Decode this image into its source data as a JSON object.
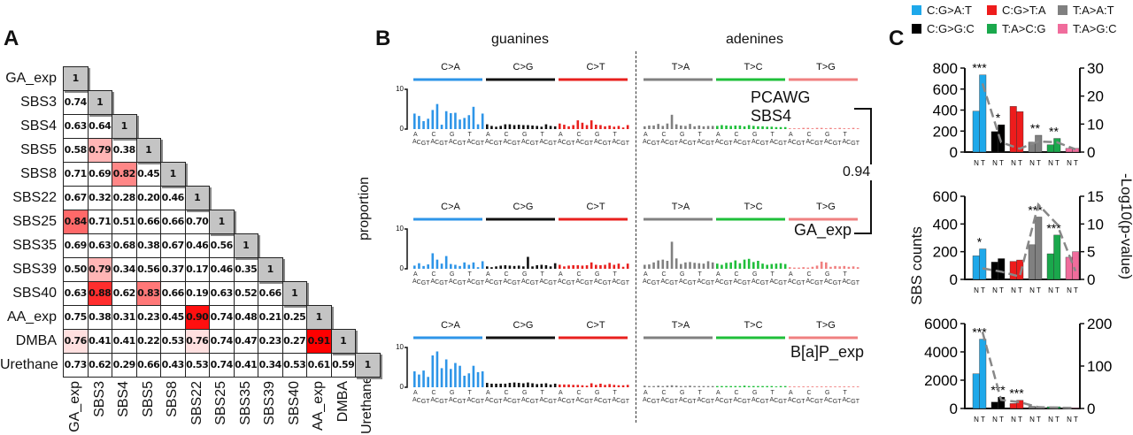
{
  "panelA": {
    "letter": "A",
    "labels": [
      "GA_exp",
      "SBS3",
      "SBS4",
      "SBS5",
      "SBS8",
      "SBS22",
      "SBS25",
      "SBS35",
      "SBS39",
      "SBS40",
      "AA_exp",
      "DMBA",
      "Urethane"
    ],
    "matrix": [
      [
        "1"
      ],
      [
        "0.74",
        "1"
      ],
      [
        "0.63",
        "0.64",
        "1"
      ],
      [
        "0.58",
        "0.79",
        "0.38",
        "1"
      ],
      [
        "0.71",
        "0.69",
        "0.82",
        "0.45",
        "1"
      ],
      [
        "0.67",
        "0.32",
        "0.28",
        "0.20",
        "0.46",
        "1"
      ],
      [
        "0.84",
        "0.71",
        "0.51",
        "0.66",
        "0.66",
        "0.70",
        "1"
      ],
      [
        "0.69",
        "0.63",
        "0.68",
        "0.38",
        "0.67",
        "0.46",
        "0.56",
        "1"
      ],
      [
        "0.50",
        "0.79",
        "0.34",
        "0.56",
        "0.37",
        "0.17",
        "0.46",
        "0.35",
        "1"
      ],
      [
        "0.63",
        "0.88",
        "0.62",
        "0.83",
        "0.66",
        "0.19",
        "0.63",
        "0.52",
        "0.66",
        "1"
      ],
      [
        "0.75",
        "0.38",
        "0.31",
        "0.23",
        "0.45",
        "0.90",
        "0.74",
        "0.48",
        "0.21",
        "0.25",
        "1"
      ],
      [
        "0.76",
        "0.41",
        "0.41",
        "0.22",
        "0.53",
        "0.76",
        "0.74",
        "0.47",
        "0.23",
        "0.27",
        "0.91",
        "1"
      ],
      [
        "0.73",
        "0.62",
        "0.29",
        "0.66",
        "0.43",
        "0.53",
        "0.74",
        "0.41",
        "0.34",
        "0.53",
        "0.61",
        "0.59",
        "1"
      ]
    ],
    "highlight_color": "#ff0000",
    "diagonal_color": "#c4c4c4"
  },
  "panelB": {
    "letter": "B",
    "group_left": "guanines",
    "group_right": "adenines",
    "ylabel": "proportion",
    "similarity": "0.94",
    "y_ticks": [
      "10",
      "0"
    ],
    "mutation_types": [
      "C>A",
      "C>G",
      "C>T",
      "T>A",
      "T>C",
      "T>G"
    ],
    "type_colors": [
      "#2e95e8",
      "#111111",
      "#e8201e",
      "#808080",
      "#1fbf3a",
      "#f08080"
    ],
    "context_5p": [
      "A",
      "C",
      "G",
      "T"
    ],
    "context_3p": [
      "A",
      "C",
      "G",
      "T"
    ],
    "signatures": [
      {
        "name": "PCAWG SBS4",
        "values": [
          [
            3.9,
            3.3,
            2.0,
            2.6,
            4.8,
            6.3,
            1.1,
            4.5,
            4.0,
            4.1,
            2.4,
            2.8,
            3.5,
            5.6,
            1.2,
            3.9
          ],
          [
            1.2,
            0.8,
            0.6,
            0.8,
            1.2,
            1.2,
            1.0,
            1.1,
            1.0,
            1.0,
            0.9,
            0.8,
            0.6,
            1.2,
            0.8,
            0.7
          ],
          [
            1.4,
            1.1,
            0.7,
            1.0,
            2.2,
            1.6,
            1.0,
            2.2,
            1.1,
            1.0,
            0.7,
            0.9,
            0.6,
            0.8,
            0.4,
            1.0
          ],
          [
            0.7,
            0.9,
            0.9,
            1.3,
            0.8,
            1.4,
            3.6,
            1.2,
            0.9,
            0.8,
            1.3,
            0.7,
            0.9,
            0.7,
            0.8,
            0.8
          ],
          [
            0.8,
            1.0,
            0.9,
            0.8,
            0.9,
            0.9,
            0.7,
            1.0,
            0.8,
            0.7,
            0.7,
            0.6,
            0.6,
            0.5,
            0.5,
            0.5
          ],
          [
            0.2,
            0.2,
            0.2,
            0.3,
            0.3,
            0.2,
            0.3,
            0.3,
            0.2,
            0.3,
            0.2,
            0.3,
            0.2,
            0.2,
            0.3,
            0.2
          ]
        ]
      },
      {
        "name": "GA_exp",
        "values": [
          [
            0.8,
            1.4,
            0.7,
            1.1,
            3.9,
            2.3,
            1.3,
            3.2,
            1.2,
            1.0,
            0.7,
            1.6,
            1.0,
            1.6,
            0.4,
            1.9
          ],
          [
            0.6,
            0.4,
            0.6,
            0.8,
            0.9,
            0.8,
            0.7,
            0.8,
            0.6,
            3.0,
            0.6,
            0.9,
            1.0,
            0.9,
            0.6,
            1.4
          ],
          [
            1.0,
            0.6,
            0.8,
            0.9,
            0.9,
            0.8,
            0.9,
            1.6,
            1.0,
            0.9,
            1.0,
            1.5,
            1.0,
            1.3,
            0.5,
            1.3
          ],
          [
            1.0,
            1.1,
            1.6,
            2.1,
            2.3,
            2.0,
            6.8,
            2.6,
            1.2,
            1.6,
            1.7,
            1.5,
            1.4,
            1.3,
            1.9,
            1.6
          ],
          [
            1.3,
            1.0,
            1.5,
            1.6,
            2.1,
            1.4,
            2.3,
            2.5,
            1.7,
            2.0,
            1.3,
            1.0,
            1.2,
            1.3,
            1.4,
            1.2
          ],
          [
            0.4,
            0.3,
            0.3,
            0.4,
            0.3,
            0.5,
            0.8,
            1.8,
            1.6,
            0.5,
            0.7,
            0.6,
            0.7,
            0.5,
            0.6,
            0.4
          ]
        ]
      },
      {
        "name": "B[a]P_exp",
        "values": [
          [
            4.0,
            3.2,
            4.2,
            2.6,
            8.0,
            9.0,
            4.8,
            7.0,
            4.6,
            6.1,
            5.4,
            2.9,
            3.5,
            5.4,
            3.8,
            4.0
          ],
          [
            1.1,
            0.9,
            0.9,
            0.9,
            0.9,
            1.1,
            1.2,
            1.1,
            1.0,
            1.2,
            1.0,
            0.8,
            0.9,
            1.0,
            0.7,
            0.9
          ],
          [
            0.7,
            0.7,
            0.7,
            0.6,
            0.6,
            0.5,
            0.4,
            1.0,
            0.6,
            0.9,
            0.6,
            0.8,
            0.6,
            0.5,
            0.5,
            0.6
          ],
          [
            0.4,
            0.3,
            0.3,
            0.4,
            0.3,
            0.4,
            0.5,
            0.4,
            0.3,
            0.3,
            0.4,
            0.3,
            0.3,
            0.3,
            0.3,
            0.3
          ],
          [
            0.3,
            0.3,
            0.3,
            0.3,
            0.3,
            0.3,
            0.4,
            0.3,
            0.3,
            0.3,
            0.3,
            0.3,
            0.3,
            0.2,
            0.3,
            0.3
          ],
          [
            0.2,
            0.2,
            0.2,
            0.2,
            0.2,
            0.2,
            0.2,
            0.2,
            0.2,
            0.2,
            0.2,
            0.2,
            0.2,
            0.2,
            0.2,
            0.2
          ]
        ]
      }
    ]
  },
  "panelC": {
    "letter": "C",
    "legend": [
      {
        "label": "C:G>A:T",
        "color": "#1ea8ea"
      },
      {
        "label": "C:G>T:A",
        "color": "#ee1c1c"
      },
      {
        "label": "T:A>A:T",
        "color": "#808080"
      },
      {
        "label": "C:G>G:C",
        "color": "#000000"
      },
      {
        "label": "T:A>C:G",
        "color": "#1aa84c"
      },
      {
        "label": "T:A>G:C",
        "color": "#f06c9c"
      }
    ],
    "ylabel_left": "SBS counts",
    "ylabel_right": "-Log10(p-value)",
    "pair_label": "N T"
  },
  "chart_data": [
    {
      "type": "heatmap",
      "title": "",
      "rows": [
        "GA_exp",
        "SBS3",
        "SBS4",
        "SBS5",
        "SBS8",
        "SBS22",
        "SBS25",
        "SBS35",
        "SBS39",
        "SBS40",
        "AA_exp",
        "DMBA",
        "Urethane"
      ],
      "note_values": "see panelA.matrix (lower triangle cosine similarities)"
    },
    {
      "type": "bar",
      "ylabel": "proportion",
      "ylim": [
        0,
        10
      ],
      "series_names": [
        "PCAWG SBS4",
        "GA_exp",
        "B[a]P_exp"
      ],
      "categories": [
        "C>A",
        "C>G",
        "C>T",
        "T>A",
        "T>C",
        "T>G"
      ]
    },
    {
      "type": "bar",
      "categories": [
        "C:G>A:T",
        "C:G>G:C",
        "C:G>T:A",
        "T:A>A:T",
        "T:A>C:G",
        "T:A>G:C"
      ],
      "ylim": [
        0,
        800
      ],
      "y2lim": [
        0,
        30
      ],
      "y_ticks": [
        "800",
        "600",
        "400",
        "200",
        "0"
      ],
      "y2_ticks": [
        "30",
        "20",
        "10",
        "0"
      ],
      "series": [
        {
          "name": "N",
          "values": [
            390,
            195,
            435,
            95,
            70,
            35
          ]
        },
        {
          "name": "T",
          "values": [
            735,
            260,
            385,
            160,
            130,
            35
          ]
        }
      ],
      "neglog10p": [
        24.5,
        3.5,
        1.2,
        3.8,
        3.5,
        1.0
      ],
      "stars": [
        "***",
        "*",
        "",
        "**",
        "**",
        ""
      ]
    },
    {
      "type": "bar",
      "categories": [
        "C:G>A:T",
        "C:G>G:C",
        "C:G>T:A",
        "T:A>A:T",
        "T:A>C:G",
        "T:A>G:C"
      ],
      "ylim": [
        0,
        600
      ],
      "y2lim": [
        0,
        15
      ],
      "y_ticks": [
        "600",
        "400",
        "200",
        "0"
      ],
      "y2_ticks": [
        "15",
        "10",
        "5",
        "0"
      ],
      "series": [
        {
          "name": "N",
          "values": [
            170,
            125,
            130,
            250,
            185,
            160
          ]
        },
        {
          "name": "T",
          "values": [
            220,
            150,
            140,
            450,
            320,
            200
          ]
        }
      ],
      "neglog10p": [
        2.0,
        1.4,
        0.5,
        13.5,
        10.0,
        1.5
      ],
      "stars": [
        "*",
        "",
        "",
        "***",
        "***",
        ""
      ]
    },
    {
      "type": "bar",
      "categories": [
        "C:G>A:T",
        "C:G>G:C",
        "C:G>T:A",
        "T:A>A:T",
        "T:A>C:G",
        "T:A>G:C"
      ],
      "ylim": [
        0,
        6000
      ],
      "y2lim": [
        0,
        200
      ],
      "y_ticks": [
        "6000",
        "4000",
        "2000",
        "0"
      ],
      "y2_ticks": [
        "200",
        "100",
        "0"
      ],
      "series": [
        {
          "name": "N",
          "values": [
            2450,
            450,
            350,
            150,
            120,
            50
          ]
        },
        {
          "name": "T",
          "values": [
            4900,
            800,
            580,
            120,
            120,
            40
          ]
        }
      ],
      "neglog10p": [
        180,
        20,
        15,
        3,
        2,
        1
      ],
      "stars": [
        "***",
        "***",
        "***",
        "",
        "",
        ""
      ]
    }
  ]
}
